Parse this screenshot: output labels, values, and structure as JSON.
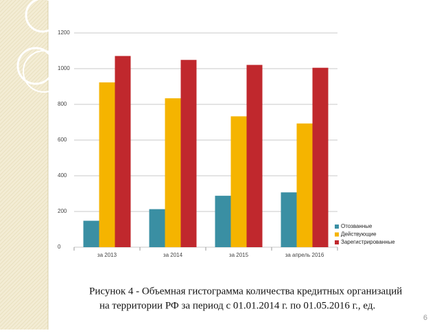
{
  "chart_data": {
    "type": "bar",
    "categories": [
      "за 2013",
      "за 2014",
      "за 2015",
      "за апрель 2016"
    ],
    "series": [
      {
        "name": "Отозванные",
        "color": "#3a8fa3",
        "values": [
          148,
          213,
          288,
          307
        ]
      },
      {
        "name": "Действующие",
        "color": "#f5b400",
        "values": [
          923,
          834,
          733,
          693
        ]
      },
      {
        "name": "Зарегистрированные",
        "color": "#c0282d",
        "values": [
          1071,
          1049,
          1021,
          1005
        ]
      }
    ],
    "ylim": [
      0,
      1200
    ],
    "yticks": [
      0,
      200,
      400,
      600,
      800,
      1000,
      1200
    ],
    "grid": true,
    "legend": "right"
  },
  "slide": {
    "caption": [
      "Рисунок 4 - Объемная гистограмма количества кредитных организаций",
      "на территории РФ за период с 01.01.2014 г. по 01.05.2016 г., ед."
    ],
    "page_number": "6"
  }
}
